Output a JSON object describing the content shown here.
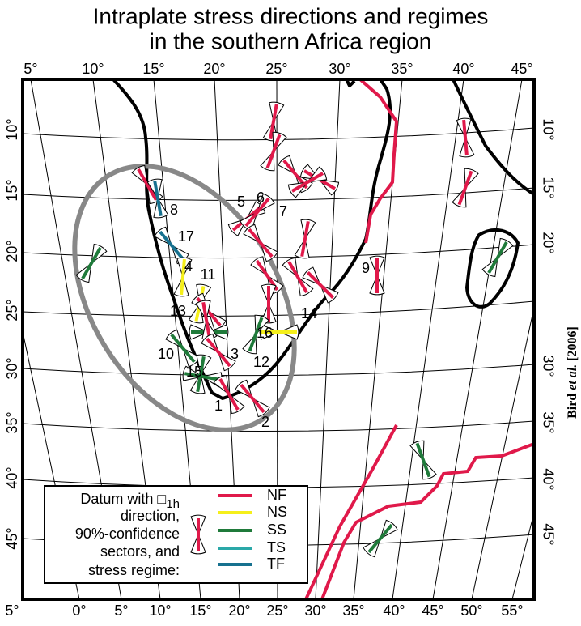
{
  "title": [
    "Intraplate stress directions and regimes",
    "in the southern Africa region"
  ],
  "top_longitude_labels": [
    "5°",
    "10°",
    "15°",
    "20°",
    "25°",
    "30°",
    "35°",
    "40°",
    "45°"
  ],
  "bottom_longitude_labels": [
    "5°",
    "0°",
    "5°",
    "10°",
    "15°",
    "20°",
    "25°",
    "30°",
    "35°",
    "40°",
    "45°",
    "50°",
    "55°"
  ],
  "left_latitude_labels": [
    "10°",
    "15°",
    "20°",
    "25°",
    "30°",
    "35°",
    "40°",
    "45°"
  ],
  "right_latitude_labels": [
    "10°",
    "15°",
    "20°",
    "30°",
    "35°",
    "40°",
    "45°"
  ],
  "site_labels": [
    "1",
    "2",
    "3",
    "4",
    "5",
    "6",
    "7",
    "8",
    "9",
    "10",
    "11",
    "12",
    "13",
    "14",
    "15",
    "16",
    "17"
  ],
  "legend": {
    "lines": [
      "Datum with □",
      "1h",
      "direction,",
      "90%-confidence",
      "sectors, and",
      "stress regime:"
    ],
    "regimes": [
      {
        "name": "NF",
        "color": "#e0194a"
      },
      {
        "name": "NS",
        "color": "#f5ef1b"
      },
      {
        "name": "SS",
        "color": "#1f7a3a"
      },
      {
        "name": "TS",
        "color": "#2aa8a8"
      },
      {
        "name": "TF",
        "color": "#17718f"
      }
    ]
  },
  "credit": [
    "Bird ",
    "et al.",
    " [2006]"
  ]
}
